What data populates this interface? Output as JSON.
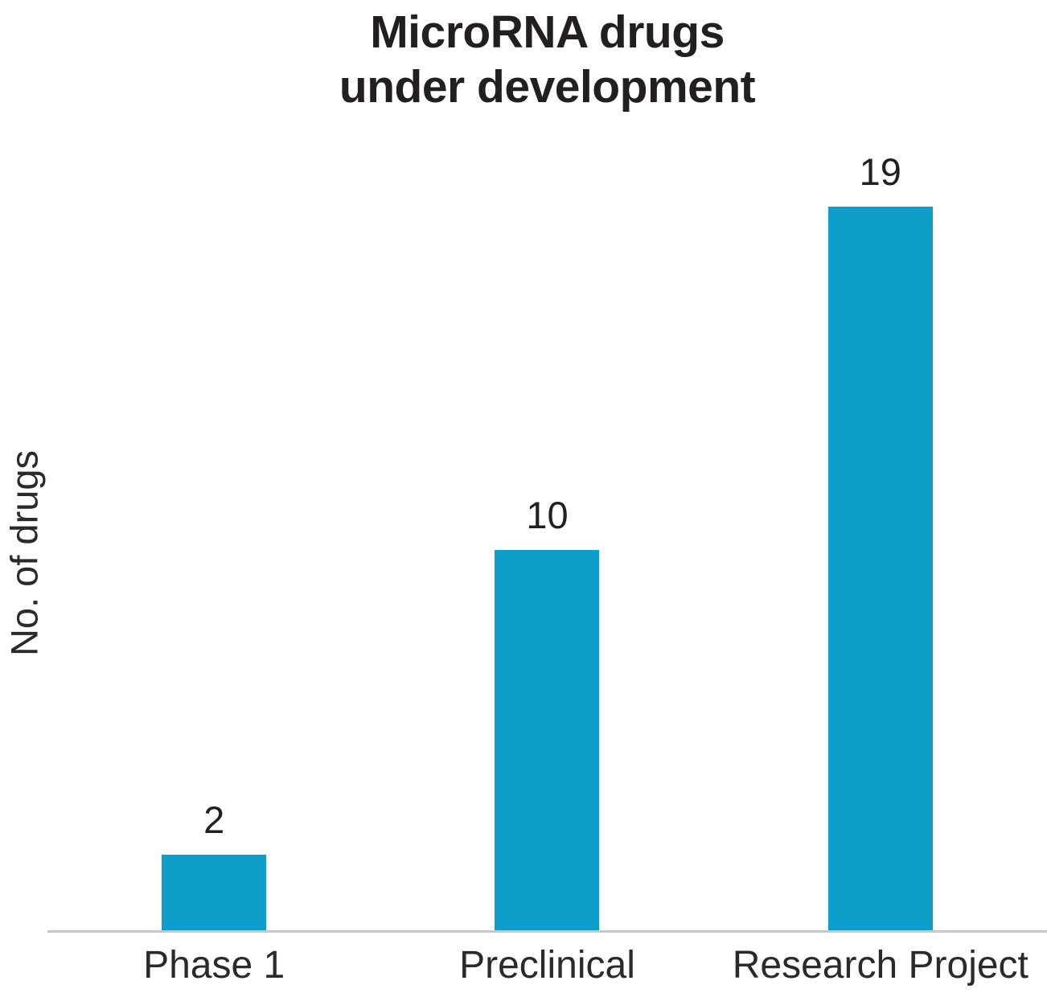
{
  "chart_data": {
    "type": "bar",
    "title": "MicroRNA drugs under development",
    "title_lines": [
      "MicroRNA drugs",
      "under development"
    ],
    "ylabel": "No. of drugs",
    "xlabel": "",
    "categories": [
      "Phase 1",
      "Preclinical",
      "Research Project"
    ],
    "values": [
      2,
      10,
      19
    ],
    "data_labels": [
      "2",
      "10",
      "19"
    ],
    "legend": "none",
    "grid": "off",
    "ylim": [
      0,
      19
    ],
    "colors": {
      "bar": "#0f9dc9",
      "axis_line": "#c9c8c8",
      "title_text": "#231f20",
      "label_text": "#2b292a"
    }
  }
}
